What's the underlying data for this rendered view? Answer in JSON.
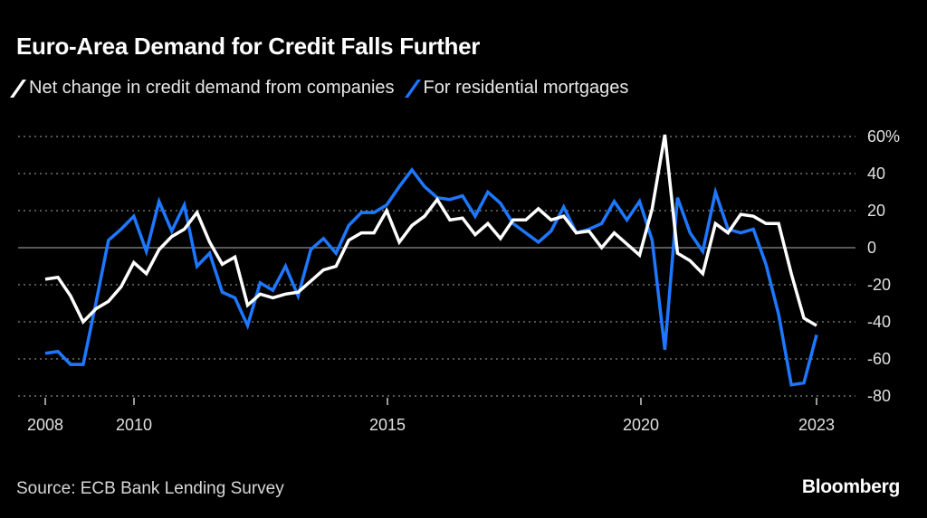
{
  "chart_data": {
    "type": "line",
    "title": "Euro-Area Demand for Credit Falls Further",
    "x_start": "2008 Q1",
    "x_frequency": "quarterly",
    "x_end": "2023 Q2",
    "x_ticks": [
      2008,
      2010,
      2015,
      2020,
      2023
    ],
    "y_ticks": [
      60,
      40,
      20,
      0,
      -20,
      -40,
      -60,
      -80
    ],
    "y_tick_labels": [
      "60%",
      "40",
      "20",
      "0",
      "-20",
      "-40",
      "-60",
      "-80"
    ],
    "ylim": [
      -80,
      60
    ],
    "grid": true,
    "legend_position": "top-left",
    "series": [
      {
        "name": "Net change in credit demand from companies",
        "color": "#ffffff",
        "values": [
          -17,
          -16,
          -26,
          -40,
          -33,
          -29,
          -21,
          -8,
          -14,
          -1,
          6,
          10,
          19,
          3,
          -9,
          -5,
          -31,
          -25,
          -27,
          -25,
          -24,
          -18,
          -12,
          -10,
          4,
          8,
          8,
          20,
          3,
          12,
          17,
          26,
          15,
          16,
          7,
          13,
          5,
          15,
          15,
          21,
          15,
          17,
          8,
          9,
          0,
          8,
          2,
          -4,
          21,
          61,
          -3,
          -7,
          -14,
          13,
          8,
          18,
          17,
          13,
          13,
          -14,
          -38,
          -42
        ]
      },
      {
        "name": "For residential mortgages",
        "color": "#1e78ff",
        "values": [
          -57,
          -56,
          -63,
          -63,
          -30,
          4,
          10,
          17,
          -2,
          25,
          9,
          23,
          -10,
          -3,
          -24,
          -27,
          -42,
          -19,
          -23,
          -10,
          -26,
          -1,
          5,
          -3,
          12,
          19,
          19,
          23,
          33,
          42,
          33,
          27,
          26,
          28,
          17,
          30,
          24,
          13,
          8,
          3,
          9,
          22,
          8,
          10,
          13,
          25,
          15,
          25,
          4,
          -55,
          27,
          8,
          -2,
          30,
          10,
          8,
          10,
          -9,
          -36,
          -74,
          -73,
          -47
        ]
      }
    ],
    "source": "Source: ECB Bank Lending Survey",
    "brand": "Bloomberg"
  }
}
